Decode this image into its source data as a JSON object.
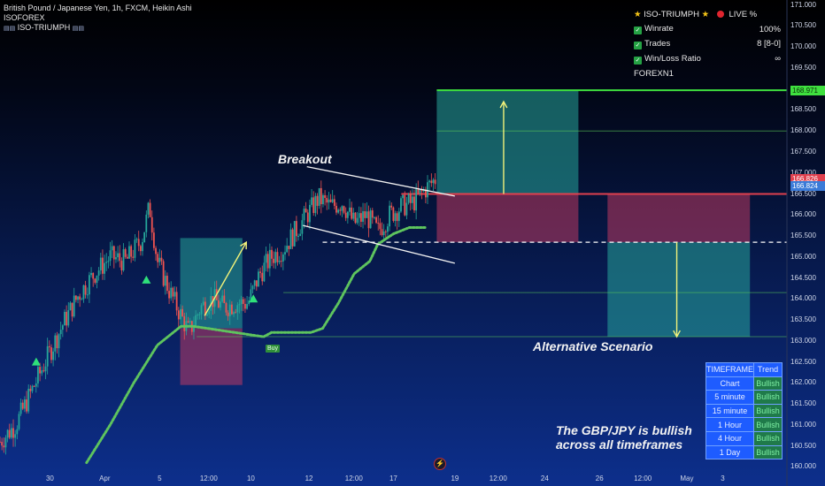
{
  "header": {
    "symbol_line": "British Pound / Japanese Yen, 1h, FXCM, Heikin Ashi",
    "brand": "ISOFOREX",
    "indicator": "ISO-TRIUMPH"
  },
  "stats_panel": {
    "title": "ISO-TRIUMPH",
    "live_label": "LIVE %",
    "rows": [
      {
        "label": "Winrate",
        "value": "100%"
      },
      {
        "label": "Trades",
        "value": "8 [8-0]"
      },
      {
        "label": "Win/Loss Ratio",
        "value": "∞"
      }
    ],
    "footer": "FOREXN1"
  },
  "annotations": {
    "breakout": "Breakout",
    "alternative": "Alternative Scenario",
    "summary_line1": "The GBP/JPY is bullish",
    "summary_line2": "across all timeframes",
    "buy_label": "Buy"
  },
  "timeframe_table": {
    "headers": [
      "TIMEFRAME",
      "Trend"
    ],
    "rows": [
      {
        "tf": "Chart",
        "trend": "Bullish"
      },
      {
        "tf": "5 minute",
        "trend": "Bullish"
      },
      {
        "tf": "15 minute",
        "trend": "Bullish"
      },
      {
        "tf": "1 Hour",
        "trend": "Bullish"
      },
      {
        "tf": "4 Hour",
        "trend": "Bullish"
      },
      {
        "tf": "1 Day",
        "trend": "Bullish"
      }
    ]
  },
  "colors": {
    "bull": "#26a69a",
    "bear": "#ef5350",
    "target": "#3fe03f",
    "stop": "#e0404e",
    "trail": "#5ec45e",
    "arrow": "#f2f27a"
  },
  "chart_data": {
    "type": "candlestick",
    "title": "British Pound / Japanese Yen, 1h, FXCM, Heikin Ashi",
    "ylim": [
      159.9,
      171.2
    ],
    "y_ticks": [
      171.0,
      170.5,
      170.0,
      169.5,
      169.0,
      168.5,
      168.0,
      167.5,
      167.0,
      166.5,
      166.0,
      165.5,
      165.0,
      164.5,
      164.0,
      163.5,
      163.0,
      162.5,
      162.0,
      161.5,
      161.0,
      160.5,
      160.0
    ],
    "y_tick_labels": [
      "171.000",
      "170.500",
      "170.000",
      "169.500",
      "169.000",
      "168.500",
      "168.000",
      "167.500",
      "167.000",
      "166.500",
      "166.000",
      "165.500",
      "165.000",
      "164.500",
      "164.000",
      "163.500",
      "163.000",
      "162.500",
      "162.000",
      "161.500",
      "161.000",
      "160.500",
      "160.000"
    ],
    "x_ticks": [
      {
        "label": "30",
        "frac": 0.0635
      },
      {
        "label": "Apr",
        "frac": 0.1331
      },
      {
        "label": "5",
        "frac": 0.2029
      },
      {
        "label": "12:00",
        "frac": 0.2653
      },
      {
        "label": "10",
        "frac": 0.3188
      },
      {
        "label": "12",
        "frac": 0.3926
      },
      {
        "label": "12:00",
        "frac": 0.4497
      },
      {
        "label": "17",
        "frac": 0.4999
      },
      {
        "label": "19",
        "frac": 0.5781
      },
      {
        "label": "12:00",
        "frac": 0.6331
      },
      {
        "label": "24",
        "frac": 0.6922
      },
      {
        "label": "26",
        "frac": 0.7618
      },
      {
        "label": "12:00",
        "frac": 0.8169
      },
      {
        "label": "May",
        "frac": 0.8728
      },
      {
        "label": "3",
        "frac": 0.9185
      }
    ],
    "price_tags": [
      {
        "label": "168.971",
        "value": 168.971,
        "color": "#3fe03f"
      },
      {
        "label": "166.826",
        "value": 166.85,
        "color": "#e0404e"
      },
      {
        "label": "166.824",
        "value": 166.69,
        "color": "#3b7bd8"
      }
    ],
    "price_path": [
      [
        0.0,
        160.6
      ],
      [
        0.02,
        161.0
      ],
      [
        0.04,
        161.8
      ],
      [
        0.06,
        162.6
      ],
      [
        0.08,
        163.4
      ],
      [
        0.1,
        164.1
      ],
      [
        0.12,
        164.6
      ],
      [
        0.14,
        165.0
      ],
      [
        0.16,
        164.9
      ],
      [
        0.18,
        165.4
      ],
      [
        0.19,
        166.2
      ],
      [
        0.2,
        164.9
      ],
      [
        0.215,
        164.2
      ],
      [
        0.23,
        163.6
      ],
      [
        0.24,
        163.2
      ],
      [
        0.255,
        163.8
      ],
      [
        0.27,
        164.0
      ],
      [
        0.285,
        163.8
      ],
      [
        0.3,
        163.9
      ],
      [
        0.315,
        163.9
      ],
      [
        0.33,
        164.6
      ],
      [
        0.345,
        165.0
      ],
      [
        0.36,
        165.2
      ],
      [
        0.375,
        165.6
      ],
      [
        0.39,
        166.0
      ],
      [
        0.405,
        166.4
      ],
      [
        0.42,
        166.2
      ],
      [
        0.435,
        166.3
      ],
      [
        0.45,
        165.8
      ],
      [
        0.465,
        166.0
      ],
      [
        0.48,
        165.6
      ],
      [
        0.495,
        166.0
      ],
      [
        0.51,
        166.2
      ],
      [
        0.525,
        166.3
      ],
      [
        0.54,
        166.6
      ],
      [
        0.553,
        166.85
      ]
    ],
    "trail_path": [
      [
        0.11,
        160.1
      ],
      [
        0.14,
        161.0
      ],
      [
        0.17,
        162.0
      ],
      [
        0.2,
        162.9
      ],
      [
        0.23,
        163.35
      ],
      [
        0.245,
        163.35
      ],
      [
        0.335,
        163.1
      ],
      [
        0.345,
        163.2
      ],
      [
        0.395,
        163.2
      ],
      [
        0.41,
        163.3
      ],
      [
        0.43,
        163.9
      ],
      [
        0.45,
        164.6
      ],
      [
        0.47,
        164.9
      ],
      [
        0.48,
        165.3
      ],
      [
        0.5,
        165.55
      ],
      [
        0.52,
        165.7
      ],
      [
        0.54,
        165.7
      ]
    ],
    "levels": [
      {
        "name": "target",
        "value": 168.971
      },
      {
        "name": "entry",
        "value": 166.5
      },
      {
        "name": "trigger",
        "value": 165.35
      },
      {
        "name": "mid_target",
        "value": 168.0
      },
      {
        "name": "alt_target",
        "value": 164.15
      },
      {
        "name": "alt_low",
        "value": 163.1
      }
    ],
    "zones": [
      {
        "kind": "profit",
        "x": [
          0.555,
          0.735
        ],
        "y": [
          166.5,
          168.971
        ]
      },
      {
        "kind": "loss",
        "x": [
          0.555,
          0.735
        ],
        "y": [
          165.35,
          166.5
        ]
      },
      {
        "kind": "loss",
        "x": [
          0.772,
          0.953
        ],
        "y": [
          165.35,
          166.5
        ]
      },
      {
        "kind": "profit",
        "x": [
          0.772,
          0.953
        ],
        "y": [
          163.1,
          165.35
        ]
      },
      {
        "kind": "profit",
        "x": [
          0.229,
          0.308
        ],
        "y": [
          163.3,
          165.45
        ]
      },
      {
        "kind": "loss",
        "x": [
          0.229,
          0.308
        ],
        "y": [
          161.95,
          163.3
        ]
      }
    ],
    "channel": [
      {
        "from": [
          0.39,
          167.15
        ],
        "to": [
          0.578,
          166.45
        ]
      },
      {
        "from": [
          0.385,
          165.75
        ],
        "to": [
          0.578,
          164.85
        ]
      }
    ],
    "arrows": [
      {
        "from": [
          0.64,
          166.5
        ],
        "to": [
          0.64,
          168.7
        ]
      },
      {
        "from": [
          0.86,
          165.35
        ],
        "to": [
          0.86,
          163.1
        ]
      },
      {
        "from": [
          0.26,
          163.6
        ],
        "to": [
          0.313,
          165.35
        ]
      }
    ],
    "buy_signals": [
      [
        0.046,
        162.5
      ],
      [
        0.186,
        164.45
      ],
      [
        0.322,
        164.0
      ]
    ]
  }
}
